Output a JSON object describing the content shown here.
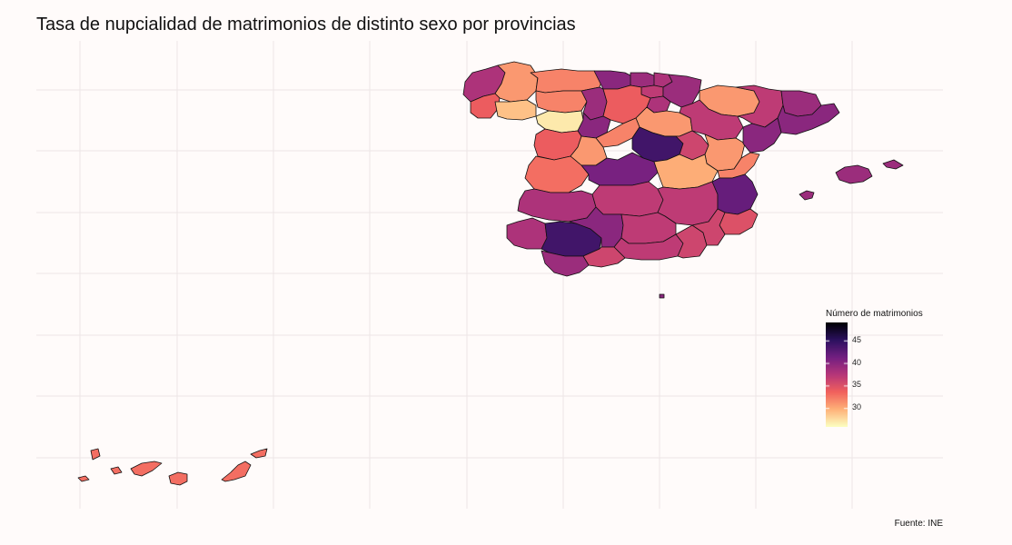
{
  "title": "Tasa de nupcialidad de matrimonios de distinto sexo por provincias",
  "caption": "Fuente: INE",
  "legend": {
    "title": "Número de matrimonios",
    "ticks": [
      45,
      40,
      35,
      30
    ],
    "range": [
      26,
      49
    ],
    "palette": [
      "#fcfdbf",
      "#feb078",
      "#f1605d",
      "#b63679",
      "#721f81",
      "#2c115f",
      "#000004"
    ]
  },
  "map_data": {
    "type": "choropleth",
    "variable": "Número de matrimonios",
    "regions": [
      {
        "name": "A Coruña",
        "value": 38
      },
      {
        "name": "Lugo",
        "value": 31
      },
      {
        "name": "Pontevedra",
        "value": 34
      },
      {
        "name": "Ourense",
        "value": 29
      },
      {
        "name": "Asturias",
        "value": 32
      },
      {
        "name": "Cantabria",
        "value": 40
      },
      {
        "name": "Bizkaia",
        "value": 39
      },
      {
        "name": "Gipuzkoa",
        "value": 38
      },
      {
        "name": "Araba",
        "value": 37
      },
      {
        "name": "Navarra",
        "value": 39
      },
      {
        "name": "La Rioja",
        "value": 38
      },
      {
        "name": "León",
        "value": 32
      },
      {
        "name": "Palencia",
        "value": 39
      },
      {
        "name": "Burgos",
        "value": 34
      },
      {
        "name": "Zamora",
        "value": 27
      },
      {
        "name": "Valladolid",
        "value": 40
      },
      {
        "name": "Soria",
        "value": 31
      },
      {
        "name": "Salamanca",
        "value": 34
      },
      {
        "name": "Segovia",
        "value": 32
      },
      {
        "name": "Ávila",
        "value": 31
      },
      {
        "name": "Madrid",
        "value": 44
      },
      {
        "name": "Guadalajara",
        "value": 36
      },
      {
        "name": "Huesca",
        "value": 31
      },
      {
        "name": "Zaragoza",
        "value": 37
      },
      {
        "name": "Teruel",
        "value": 31
      },
      {
        "name": "Lleida",
        "value": 37
      },
      {
        "name": "Girona",
        "value": 39
      },
      {
        "name": "Barcelona",
        "value": 40
      },
      {
        "name": "Tarragona",
        "value": 40
      },
      {
        "name": "Cáceres",
        "value": 33
      },
      {
        "name": "Toledo",
        "value": 41
      },
      {
        "name": "Cuenca",
        "value": 30
      },
      {
        "name": "Castellón",
        "value": 32
      },
      {
        "name": "Badajoz",
        "value": 38
      },
      {
        "name": "Ciudad Real",
        "value": 37
      },
      {
        "name": "Albacete",
        "value": 37
      },
      {
        "name": "Valencia",
        "value": 42
      },
      {
        "name": "Alicante",
        "value": 35
      },
      {
        "name": "Huelva",
        "value": 38
      },
      {
        "name": "Sevilla",
        "value": 44
      },
      {
        "name": "Córdoba",
        "value": 40
      },
      {
        "name": "Jaén",
        "value": 37
      },
      {
        "name": "Granada",
        "value": 37
      },
      {
        "name": "Almería",
        "value": 36
      },
      {
        "name": "Murcia",
        "value": 36
      },
      {
        "name": "Málaga",
        "value": 36
      },
      {
        "name": "Cádiz",
        "value": 39
      },
      {
        "name": "Illes Balears",
        "value": 39
      },
      {
        "name": "Melilla",
        "value": 40
      },
      {
        "name": "Las Palmas",
        "value": 33
      },
      {
        "name": "Santa Cruz de Tenerife",
        "value": 33
      }
    ]
  }
}
